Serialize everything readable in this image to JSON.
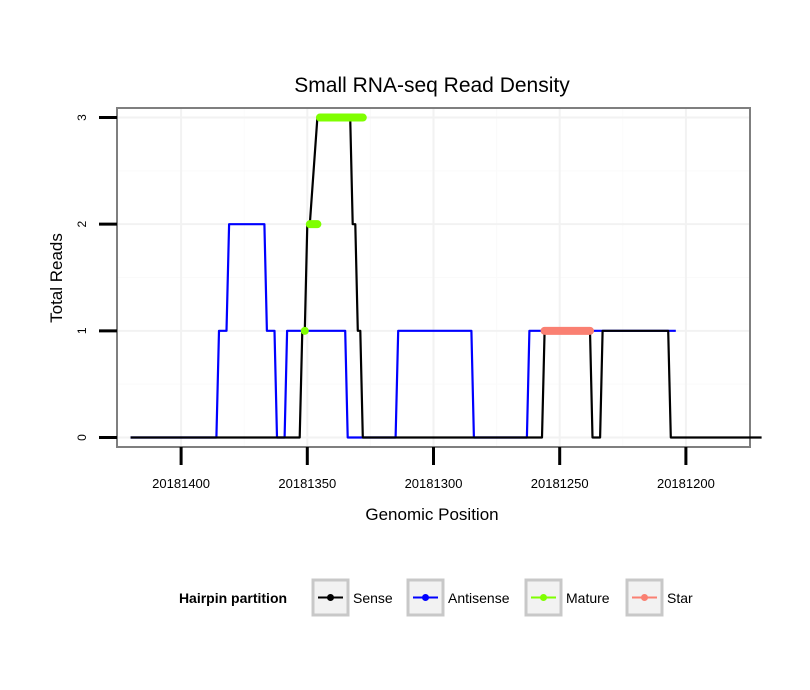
{
  "chart_data": {
    "type": "line",
    "title": "Small RNA-seq Read Density",
    "xlabel": "Genomic Position",
    "ylabel": "Total Reads",
    "x_reversed": true,
    "xlim": [
      20181425,
      20181175
    ],
    "ylim": [
      -0.08,
      3.08
    ],
    "x_ticks": [
      20181400,
      20181350,
      20181300,
      20181250,
      20181200
    ],
    "x_tick_labels": [
      "20181400",
      "20181350",
      "20181300",
      "20181250",
      "20181200"
    ],
    "y_ticks": [
      0,
      1,
      2,
      3
    ],
    "y_tick_labels": [
      "0",
      "1",
      "2",
      "3"
    ],
    "grid": true,
    "legend": {
      "title": "Hairpin partition",
      "position": "bottom",
      "entries": [
        {
          "label": "Sense",
          "color": "#000000"
        },
        {
          "label": "Antisense",
          "color": "#0000ff"
        },
        {
          "label": "Mature",
          "color": "#7fff00"
        },
        {
          "label": "Star",
          "color": "#fa8072"
        }
      ]
    },
    "series": [
      {
        "name": "Sense",
        "color": "#000000",
        "x": [
          20181420,
          20181353,
          20181352,
          20181351,
          20181350,
          20181349,
          20181346,
          20181345,
          20181334,
          20181333,
          20181332,
          20181331,
          20181330,
          20181329,
          20181328,
          20181327,
          20181326,
          20181325,
          20181257,
          20181256,
          20181238,
          20181237,
          20181234,
          20181233,
          20181207,
          20181206,
          20181170
        ],
        "y": [
          0,
          0,
          1,
          1,
          2,
          2,
          3,
          3,
          3,
          3,
          2,
          2,
          1,
          1,
          0,
          0,
          0,
          0,
          0,
          1,
          1,
          0,
          0,
          1,
          1,
          0,
          0
        ]
      },
      {
        "name": "Antisense",
        "color": "#0000ff",
        "x": [
          20181420,
          20181386,
          20181385,
          20181382,
          20181381,
          20181367,
          20181366,
          20181363,
          20181362,
          20181359,
          20181358,
          20181335,
          20181334,
          20181315,
          20181314,
          20181285,
          20181284,
          20181263,
          20181262,
          20181204
        ],
        "y": [
          0,
          0,
          1,
          1,
          2,
          2,
          1,
          1,
          0,
          0,
          1,
          1,
          0,
          0,
          1,
          1,
          0,
          0,
          1,
          1
        ]
      }
    ],
    "segments": [
      {
        "name": "Mature",
        "color": "#7fff00",
        "y": 1,
        "x1": 20181351,
        "x2": 20181351
      },
      {
        "name": "Mature",
        "color": "#7fff00",
        "y": 2,
        "x1": 20181349,
        "x2": 20181346
      },
      {
        "name": "Mature",
        "color": "#7fff00",
        "y": 3,
        "x1": 20181345,
        "x2": 20181328
      },
      {
        "name": "Star",
        "color": "#fa8072",
        "y": 1,
        "x1": 20181256,
        "x2": 20181238
      }
    ]
  }
}
